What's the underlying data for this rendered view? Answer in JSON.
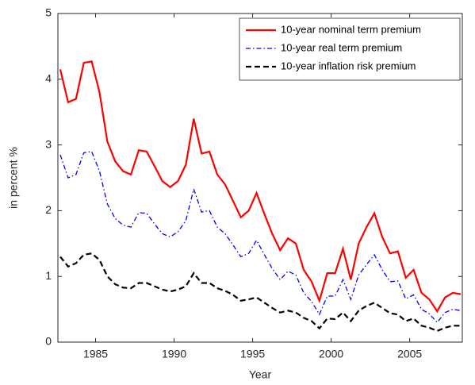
{
  "chart_data": {
    "type": "line",
    "xlabel": "Year",
    "ylabel": "in percent %",
    "x": [
      1982.75,
      1983.25,
      1983.75,
      1984.25,
      1984.75,
      1985.25,
      1985.75,
      1986.25,
      1986.75,
      1987.25,
      1987.75,
      1988.25,
      1988.75,
      1989.25,
      1989.75,
      1990.25,
      1990.75,
      1991.25,
      1991.75,
      1992.25,
      1992.75,
      1993.25,
      1993.75,
      1994.25,
      1994.75,
      1995.25,
      1995.75,
      1996.25,
      1996.75,
      1997.25,
      1997.75,
      1998.25,
      1998.75,
      1999.25,
      1999.75,
      2000.25,
      2000.75,
      2001.25,
      2001.75,
      2002.25,
      2002.75,
      2003.25,
      2003.75,
      2004.25,
      2004.75,
      2005.25,
      2005.75,
      2006.25,
      2006.75,
      2007.25,
      2007.75,
      2008.25
    ],
    "series": [
      {
        "name": "10-year nominal term premium",
        "color": "#ff0000",
        "style": "solid",
        "values": [
          4.15,
          3.65,
          3.7,
          4.25,
          4.27,
          3.8,
          3.05,
          2.75,
          2.6,
          2.55,
          2.92,
          2.9,
          2.68,
          2.45,
          2.36,
          2.45,
          2.7,
          3.4,
          2.87,
          2.9,
          2.55,
          2.4,
          2.15,
          1.9,
          2.0,
          2.27,
          1.95,
          1.65,
          1.4,
          1.58,
          1.5,
          1.1,
          0.92,
          0.63,
          1.05,
          1.05,
          1.42,
          0.95,
          1.5,
          1.75,
          1.96,
          1.6,
          1.35,
          1.38,
          0.98,
          1.1,
          0.75,
          0.65,
          0.47,
          0.68,
          0.75,
          0.73
        ]
      },
      {
        "name": "10-year real term premium",
        "color": "#0000ff",
        "style": "dashdot",
        "values": [
          2.85,
          2.5,
          2.55,
          2.88,
          2.9,
          2.6,
          2.1,
          1.88,
          1.78,
          1.75,
          1.97,
          1.96,
          1.8,
          1.65,
          1.6,
          1.68,
          1.85,
          2.33,
          1.98,
          2.0,
          1.75,
          1.65,
          1.48,
          1.3,
          1.35,
          1.55,
          1.33,
          1.12,
          0.95,
          1.08,
          1.02,
          0.75,
          0.62,
          0.42,
          0.7,
          0.7,
          0.95,
          0.65,
          1.02,
          1.18,
          1.33,
          1.1,
          0.92,
          0.93,
          0.66,
          0.72,
          0.5,
          0.43,
          0.3,
          0.45,
          0.5,
          0.48
        ]
      },
      {
        "name": "10-year inflation risk premium",
        "color": "#000000",
        "style": "dashed",
        "values": [
          1.3,
          1.15,
          1.2,
          1.33,
          1.35,
          1.25,
          1.0,
          0.88,
          0.83,
          0.82,
          0.9,
          0.9,
          0.85,
          0.8,
          0.77,
          0.8,
          0.85,
          1.05,
          0.9,
          0.9,
          0.82,
          0.78,
          0.72,
          0.63,
          0.65,
          0.68,
          0.6,
          0.52,
          0.45,
          0.48,
          0.45,
          0.37,
          0.32,
          0.21,
          0.36,
          0.35,
          0.45,
          0.32,
          0.48,
          0.55,
          0.6,
          0.52,
          0.44,
          0.42,
          0.32,
          0.36,
          0.25,
          0.22,
          0.17,
          0.22,
          0.25,
          0.25
        ]
      }
    ],
    "xlim": [
      1982.6,
      2008.35
    ],
    "xticks": [
      1985,
      1990,
      1995,
      2000,
      2005
    ],
    "ylim": [
      0,
      5
    ],
    "yticks": [
      0,
      1,
      2,
      3,
      4,
      5
    ],
    "legend": "upper right"
  }
}
